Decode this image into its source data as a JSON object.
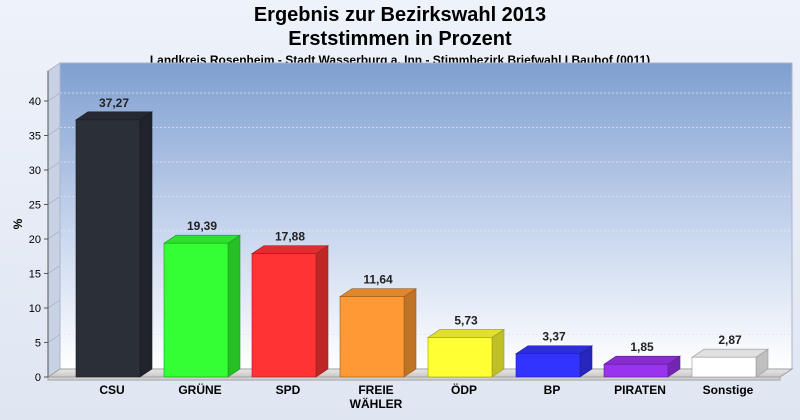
{
  "chart_data": {
    "type": "bar",
    "title": "Ergebnis zur Bezirkswahl 2013",
    "title2": "Erststimmen in Prozent",
    "subtitle": "Landkreis Rosenheim - Stadt Wasserburg a. Inn - Stimmbezirk Briefwahl I Bauhof (0011)",
    "ylabel": "%",
    "xlabel": "",
    "ylim": [
      0,
      40
    ],
    "yticks": [
      "0",
      "5",
      "10",
      "15",
      "20",
      "25",
      "30",
      "35",
      "40"
    ],
    "categories": [
      "CSU",
      "GRÜNE",
      "SPD",
      "FREIE WÄHLER",
      "ÖDP",
      "BP",
      "PIRATEN",
      "Sonstige"
    ],
    "category_lines": [
      [
        "CSU"
      ],
      [
        "GRÜNE"
      ],
      [
        "SPD"
      ],
      [
        "FREIE",
        "WÄHLER"
      ],
      [
        "ÖDP"
      ],
      [
        "BP"
      ],
      [
        "PIRATEN"
      ],
      [
        "Sonstige"
      ]
    ],
    "values": [
      37.27,
      19.39,
      17.88,
      11.64,
      5.73,
      3.37,
      1.85,
      2.87
    ],
    "value_labels": [
      "37,27",
      "19,39",
      "17,88",
      "11,64",
      "5,73",
      "3,37",
      "1,85",
      "2,87"
    ],
    "colors": [
      "#2b2f38",
      "#33ff33",
      "#ff3333",
      "#ff9933",
      "#ffff33",
      "#3333ff",
      "#9933ee",
      "#ffffff"
    ],
    "grid": true,
    "legend": "none"
  }
}
